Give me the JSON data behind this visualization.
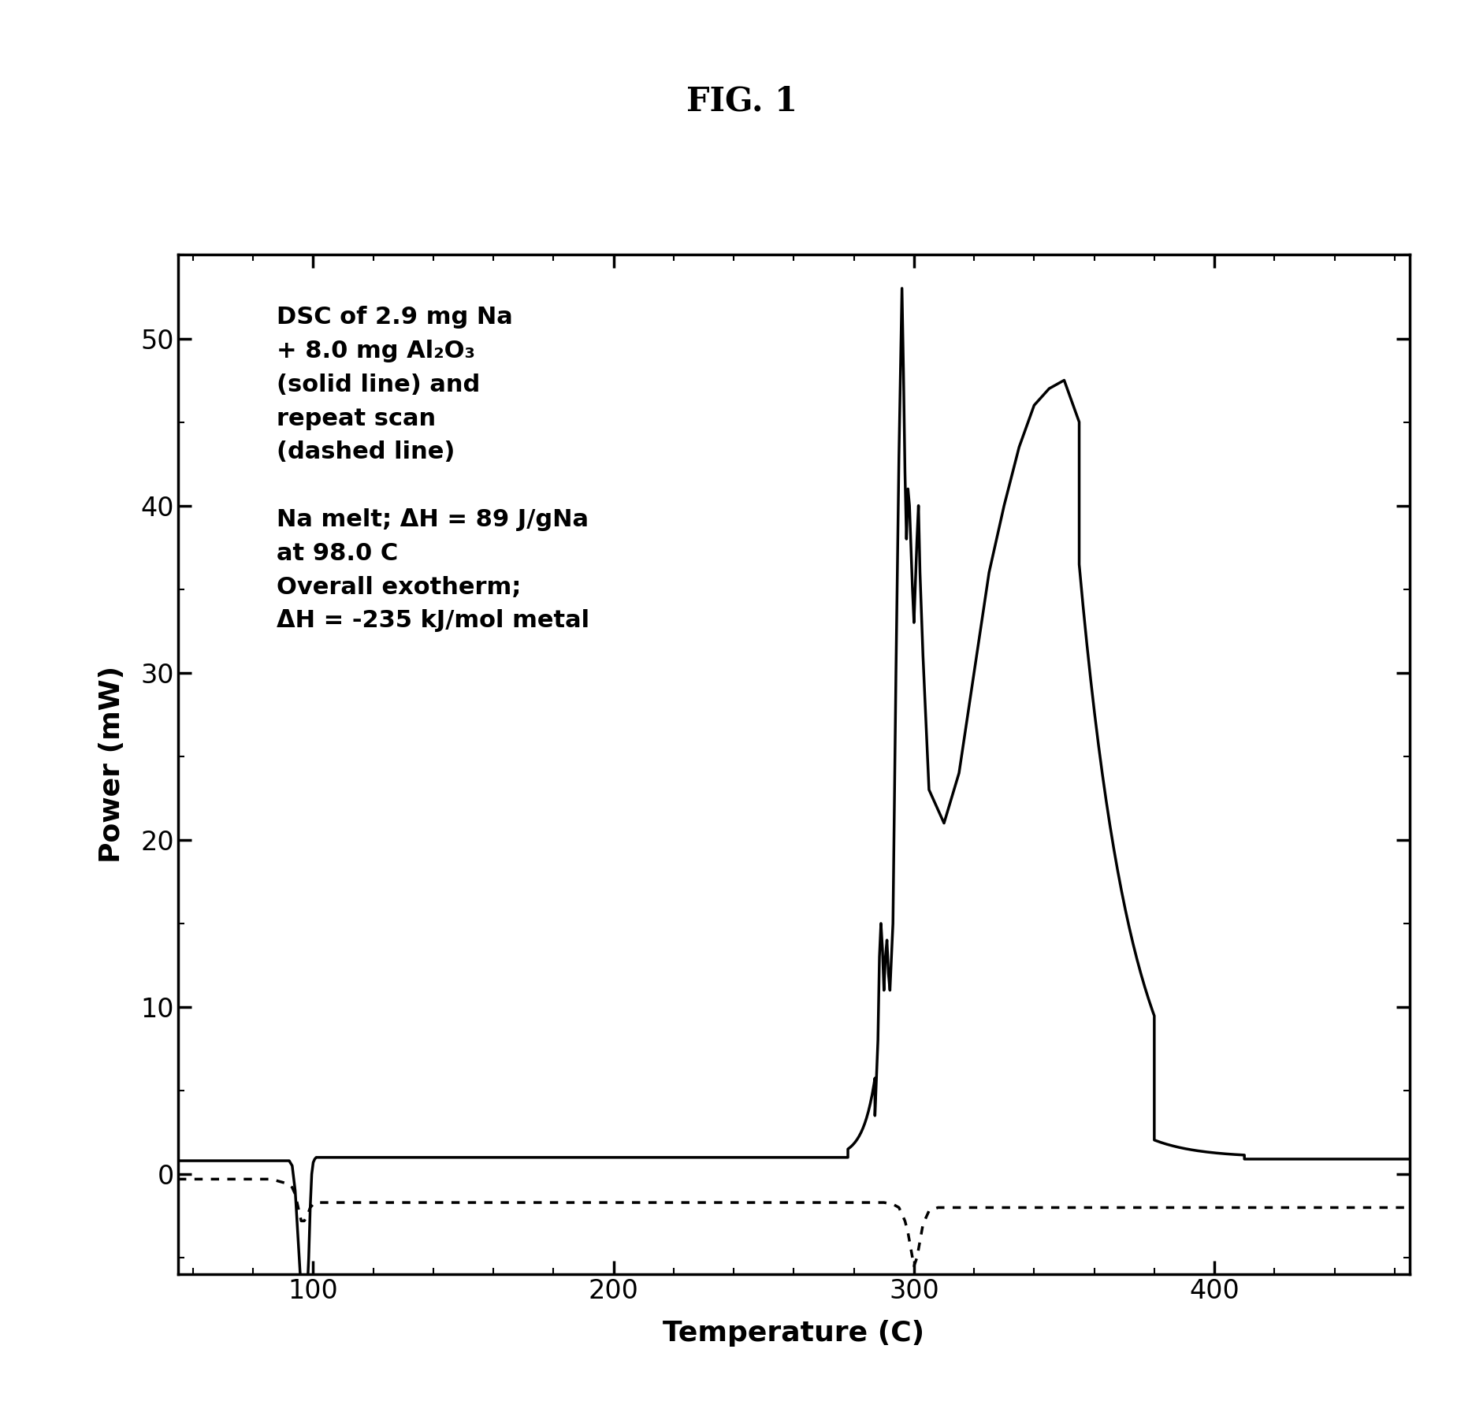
{
  "title": "FIG. 1",
  "xlabel": "Temperature (C)",
  "ylabel": "Power (mW)",
  "xlim": [
    55,
    465
  ],
  "ylim": [
    -6,
    55
  ],
  "xticks": [
    100,
    200,
    300,
    400
  ],
  "yticks": [
    0,
    10,
    20,
    30,
    40,
    50
  ],
  "annotation_line1": "DSC of 2.9 mg Na",
  "annotation_line2": "+ 8.0 mg Al",
  "annotation_sub": "2",
  "annotation_line2b": "O",
  "annotation_sub2": "3",
  "annotation_lines": [
    "DSC of 2.9 mg Na",
    "+ 8.0 mg Al₂O₃",
    "(solid line) and",
    "repeat scan",
    "(dashed line)",
    "",
    "Na melt; ΔH = 89 J/gNa",
    "at 98.0 C",
    "Overall exotherm;",
    "ΔH = -235 kJ/mol metal"
  ],
  "background_color": "#ffffff",
  "line_color": "#000000",
  "title_fontsize": 30,
  "label_fontsize": 26,
  "tick_fontsize": 24,
  "annotation_fontsize": 22
}
